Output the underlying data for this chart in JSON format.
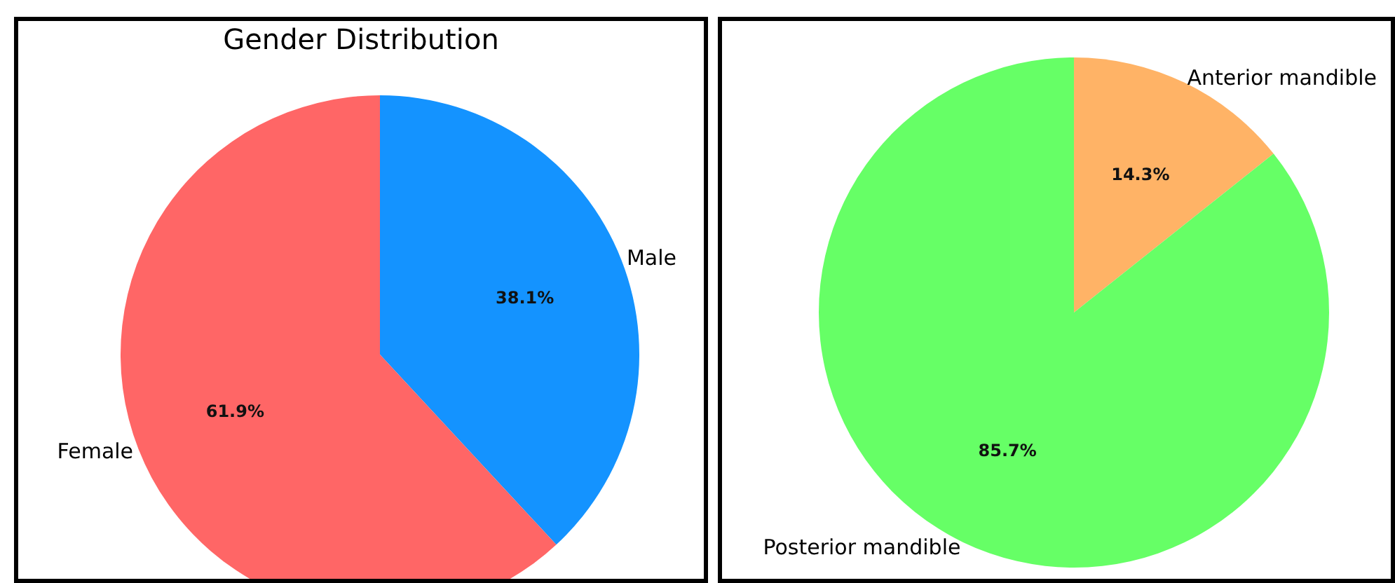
{
  "chart_data": [
    {
      "type": "pie",
      "title": "Gender Distribution",
      "categories": [
        "Male",
        "Female"
      ],
      "values": [
        38.1,
        61.9
      ],
      "colors": [
        "#1493ff",
        "#ff6666"
      ],
      "value_labels": [
        "38.1%",
        "61.9%"
      ]
    },
    {
      "type": "pie",
      "categories": [
        "Anterior mandible",
        "Posterior mandible"
      ],
      "values": [
        14.3,
        85.7
      ],
      "colors": [
        "#ffb366",
        "#66ff66"
      ],
      "value_labels": [
        "14.3%",
        "85.7%"
      ]
    }
  ]
}
